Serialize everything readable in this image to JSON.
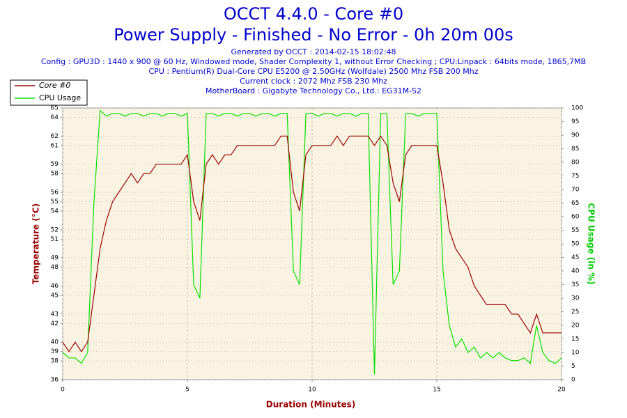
{
  "chart_data": {
    "type": "line",
    "title": "OCCT 4.4.0 - Core #0",
    "subtitle": "Power Supply - Finished - No Error - 0h 20m 00s",
    "annotations": [
      "Generated by OCCT : 2014-02-15 18:02:48",
      "Config : GPU3D : 1440 x 900 @ 60 Hz, Windowed mode, Shader Complexity 1, without Error Checking ; CPU:Linpack : 64bits mode, 1865,7MB",
      "CPU : Pentium(R) Dual-Core CPU E5200 @ 2.50GHz (Wolfdale) 2500 Mhz FSB 200 Mhz",
      "Current clock : 2072 Mhz FSB 230 Mhz",
      "MotherBoard : Gigabyte Technology Co., Ltd.: EG31M-S2"
    ],
    "xlabel": "Duration (Minutes)",
    "ylabel": "Temperature (°C)",
    "y2label": "CPU Usage (in %)",
    "x": [
      0,
      0.25,
      0.5,
      0.75,
      1,
      1.25,
      1.5,
      1.75,
      2,
      2.25,
      2.5,
      2.75,
      3,
      3.25,
      3.5,
      3.75,
      4,
      4.25,
      4.5,
      4.75,
      5,
      5.25,
      5.5,
      5.75,
      6,
      6.25,
      6.5,
      6.75,
      7,
      7.25,
      7.5,
      7.75,
      8,
      8.25,
      8.5,
      8.75,
      9,
      9.25,
      9.5,
      9.75,
      10,
      10.25,
      10.5,
      10.75,
      11,
      11.25,
      11.5,
      11.75,
      12,
      12.25,
      12.5,
      12.75,
      13,
      13.25,
      13.5,
      13.75,
      14,
      14.25,
      14.5,
      14.75,
      15,
      15.25,
      15.5,
      15.75,
      16,
      16.25,
      16.5,
      16.75,
      17,
      17.25,
      17.5,
      17.75,
      18,
      18.25,
      18.5,
      18.75,
      19,
      19.25,
      19.5,
      19.75,
      20
    ],
    "series": [
      {
        "name": "Core #0",
        "color": "#990000",
        "axis": "y",
        "values": [
          40,
          39,
          40,
          39,
          40,
          45,
          50,
          53,
          55,
          56,
          57,
          58,
          57,
          58,
          58,
          59,
          59,
          59,
          59,
          59,
          60,
          55,
          53,
          59,
          60,
          59,
          60,
          60,
          61,
          61,
          61,
          61,
          61,
          61,
          61,
          62,
          62,
          56,
          54,
          60,
          61,
          61,
          61,
          61,
          62,
          61,
          62,
          62,
          62,
          62,
          61,
          62,
          61,
          57,
          55,
          60,
          61,
          61,
          61,
          61,
          61,
          57,
          52,
          50,
          49,
          48,
          46,
          45,
          44,
          44,
          44,
          44,
          43,
          43,
          42,
          41,
          43,
          41,
          41,
          41,
          41
        ]
      },
      {
        "name": "CPU Usage",
        "color": "#00e000",
        "axis": "y2",
        "values": [
          10,
          8,
          8,
          6,
          10,
          65,
          99,
          97,
          98,
          98,
          97,
          98,
          98,
          97,
          98,
          98,
          97,
          98,
          98,
          97,
          98,
          35,
          30,
          98,
          98,
          97,
          98,
          98,
          97,
          98,
          98,
          97,
          98,
          98,
          97,
          98,
          98,
          40,
          35,
          98,
          98,
          97,
          98,
          98,
          97,
          98,
          98,
          97,
          98,
          98,
          2,
          98,
          98,
          35,
          40,
          98,
          98,
          97,
          98,
          98,
          98,
          40,
          20,
          12,
          15,
          10,
          12,
          8,
          10,
          8,
          10,
          8,
          7,
          7,
          8,
          6,
          20,
          10,
          7,
          6,
          8
        ]
      }
    ],
    "xlim": [
      0,
      20
    ],
    "xticks": [
      0,
      5,
      10,
      15,
      20
    ],
    "ylim": [
      36,
      65
    ],
    "yticks": [
      36,
      38,
      39,
      40,
      42,
      43,
      45,
      46,
      48,
      49,
      51,
      52,
      54,
      55,
      56,
      58,
      59,
      61,
      62,
      64,
      65
    ],
    "y2lim": [
      0,
      100
    ],
    "y2ticks": [
      0,
      5,
      10,
      15,
      20,
      25,
      30,
      35,
      40,
      45,
      50,
      55,
      60,
      65,
      70,
      75,
      80,
      85,
      90,
      95,
      100
    ],
    "grid": true,
    "legend": "top-left"
  }
}
